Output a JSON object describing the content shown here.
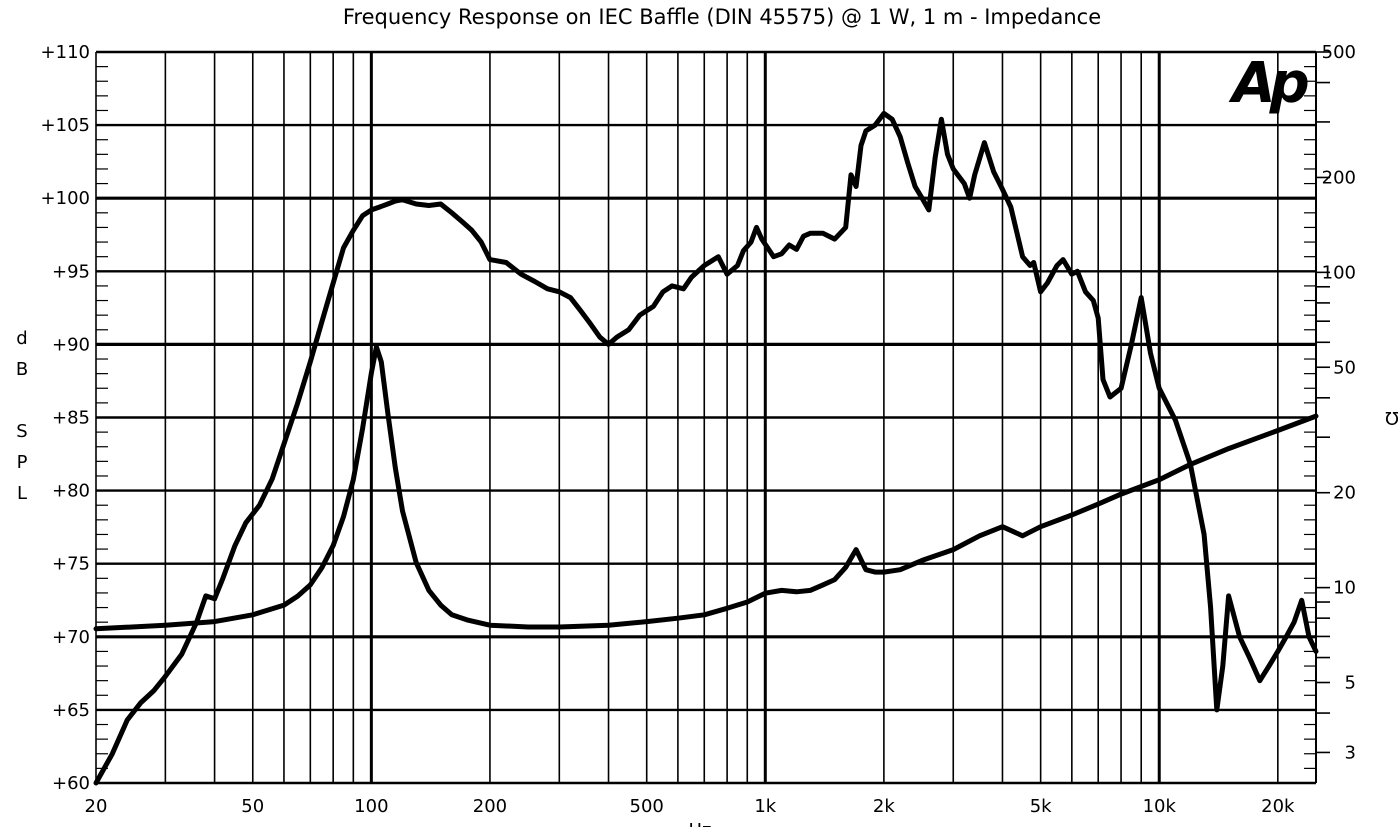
{
  "chart_data": {
    "type": "line",
    "title": "Frequency Response on IEC Baffle (DIN 45575) @ 1 W, 1 m - Impedance",
    "logo_text": "Ap",
    "xlabel": "Hz",
    "ylabel_letters": [
      "d",
      "B",
      "",
      "S",
      "P",
      "L"
    ],
    "y2label": "Ω",
    "xscale": "log",
    "xlim": [
      20,
      25000
    ],
    "ylim": [
      60,
      110
    ],
    "y2scale": "log",
    "y2lim": [
      2.4,
      500
    ],
    "grid": true,
    "x_ticks": [
      {
        "label": "20",
        "value": 20
      },
      {
        "label": "50",
        "value": 50
      },
      {
        "label": "100",
        "value": 100
      },
      {
        "label": "200",
        "value": 200
      },
      {
        "label": "500",
        "value": 500
      },
      {
        "label": "1k",
        "value": 1000
      },
      {
        "label": "2k",
        "value": 2000
      },
      {
        "label": "5k",
        "value": 5000
      },
      {
        "label": "10k",
        "value": 10000
      },
      {
        "label": "20k",
        "value": 20000
      }
    ],
    "y_ticks": [
      {
        "label": "+60",
        "value": 60
      },
      {
        "label": "+65",
        "value": 65
      },
      {
        "label": "+70",
        "value": 70
      },
      {
        "label": "+75",
        "value": 75
      },
      {
        "label": "+80",
        "value": 80
      },
      {
        "label": "+85",
        "value": 85
      },
      {
        "label": "+90",
        "value": 90
      },
      {
        "label": "+95",
        "value": 95
      },
      {
        "label": "+100",
        "value": 100
      },
      {
        "label": "+105",
        "value": 105
      },
      {
        "label": "+110",
        "value": 110
      }
    ],
    "y2_ticks": [
      {
        "label": "500",
        "value": 500
      },
      {
        "label": "200",
        "value": 200
      },
      {
        "label": "100",
        "value": 100
      },
      {
        "label": "50",
        "value": 50
      },
      {
        "label": "20",
        "value": 20
      },
      {
        "label": "10",
        "value": 10
      },
      {
        "label": "5",
        "value": 5
      },
      {
        "label": "3",
        "value": 3
      }
    ],
    "series": [
      {
        "axis": "left",
        "x": [
          20,
          22,
          24,
          26,
          28,
          30,
          33,
          36,
          38,
          40,
          42,
          45,
          48,
          52,
          56,
          60,
          65,
          70,
          75,
          80,
          85,
          90,
          95,
          100,
          105,
          110,
          115,
          120,
          130,
          140,
          150,
          160,
          170,
          180,
          190,
          200,
          220,
          240,
          260,
          280,
          300,
          320,
          340,
          360,
          380,
          400,
          420,
          450,
          480,
          520,
          550,
          580,
          620,
          650,
          700,
          720,
          760,
          800,
          850,
          880,
          920,
          950,
          980,
          1050,
          1100,
          1150,
          1200,
          1250,
          1300,
          1400,
          1500,
          1600,
          1650,
          1700,
          1750,
          1800,
          1900,
          2000,
          2100,
          2200,
          2300,
          2400,
          2500,
          2600,
          2700,
          2800,
          2900,
          3000,
          3200,
          3300,
          3400,
          3600,
          3800,
          4000,
          4200,
          4500,
          4700,
          4800,
          5000,
          5200,
          5500,
          5700,
          6000,
          6200,
          6500,
          6800,
          7000,
          7200,
          7500,
          8000,
          8500,
          9000,
          9500,
          10000,
          11000,
          12000,
          13000,
          13500,
          14000,
          14500,
          15000,
          16000,
          17000,
          18000,
          19000,
          20000,
          21000,
          22000,
          23000,
          24000,
          25000
        ],
        "values": [
          59.5,
          62.0,
          64.3,
          65.5,
          66.3,
          67.3,
          68.8,
          71.0,
          72.8,
          72.6,
          74.0,
          76.2,
          77.8,
          79.0,
          80.8,
          83.2,
          86.0,
          88.8,
          91.6,
          94.2,
          96.6,
          97.8,
          98.8,
          99.2,
          99.4,
          99.6,
          99.8,
          99.9,
          99.6,
          99.5,
          99.6,
          99.0,
          98.4,
          97.8,
          97.0,
          95.8,
          95.6,
          94.8,
          94.3,
          93.8,
          93.6,
          93.2,
          92.3,
          91.4,
          90.5,
          90.0,
          90.5,
          91.0,
          92.0,
          92.6,
          93.6,
          94.0,
          93.8,
          94.6,
          95.4,
          95.6,
          96.0,
          94.8,
          95.4,
          96.4,
          97.0,
          98.0,
          97.2,
          96.0,
          96.2,
          96.8,
          96.5,
          97.4,
          97.6,
          97.6,
          97.2,
          98.0,
          101.6,
          100.8,
          103.6,
          104.6,
          105.0,
          105.8,
          105.4,
          104.2,
          102.4,
          100.8,
          100.0,
          99.2,
          102.8,
          105.4,
          103.0,
          102.0,
          101.0,
          100.0,
          101.6,
          103.8,
          101.8,
          100.6,
          99.4,
          96.0,
          95.4,
          95.6,
          93.6,
          94.2,
          95.4,
          95.8,
          94.8,
          95.0,
          93.6,
          93.0,
          91.8,
          87.6,
          86.4,
          87.0,
          90.0,
          93.2,
          89.4,
          87.0,
          84.8,
          81.8,
          77.0,
          72.0,
          65.0,
          68.0,
          72.8,
          70.0,
          68.5,
          67.0,
          68.0,
          69.0,
          70.0,
          71.0,
          72.5,
          70.0,
          69.0
        ]
      },
      {
        "axis": "right",
        "x": [
          20,
          30,
          40,
          50,
          60,
          65,
          70,
          75,
          80,
          85,
          90,
          95,
          100,
          103,
          106,
          110,
          115,
          120,
          130,
          140,
          150,
          160,
          175,
          200,
          250,
          300,
          400,
          500,
          600,
          700,
          800,
          900,
          1000,
          1100,
          1200,
          1300,
          1400,
          1500,
          1600,
          1700,
          1800,
          1900,
          2000,
          2200,
          2500,
          3000,
          3500,
          4000,
          4500,
          5000,
          6000,
          7000,
          8000,
          10000,
          12000,
          15000,
          20000,
          25000
        ],
        "values": [
          7.4,
          7.6,
          7.8,
          8.2,
          8.8,
          9.4,
          10.2,
          11.6,
          13.6,
          16.8,
          22.0,
          32.0,
          48.0,
          58.0,
          52.0,
          36.0,
          24.0,
          17.5,
          12.0,
          9.8,
          8.8,
          8.2,
          7.9,
          7.6,
          7.5,
          7.5,
          7.6,
          7.8,
          8.0,
          8.2,
          8.6,
          9.0,
          9.6,
          9.8,
          9.7,
          9.8,
          10.2,
          10.6,
          11.6,
          13.2,
          11.4,
          11.2,
          11.2,
          11.4,
          12.2,
          13.2,
          14.6,
          15.6,
          14.6,
          15.6,
          17.0,
          18.4,
          19.8,
          22.0,
          24.6,
          27.6,
          31.5,
          35.0
        ]
      }
    ]
  }
}
